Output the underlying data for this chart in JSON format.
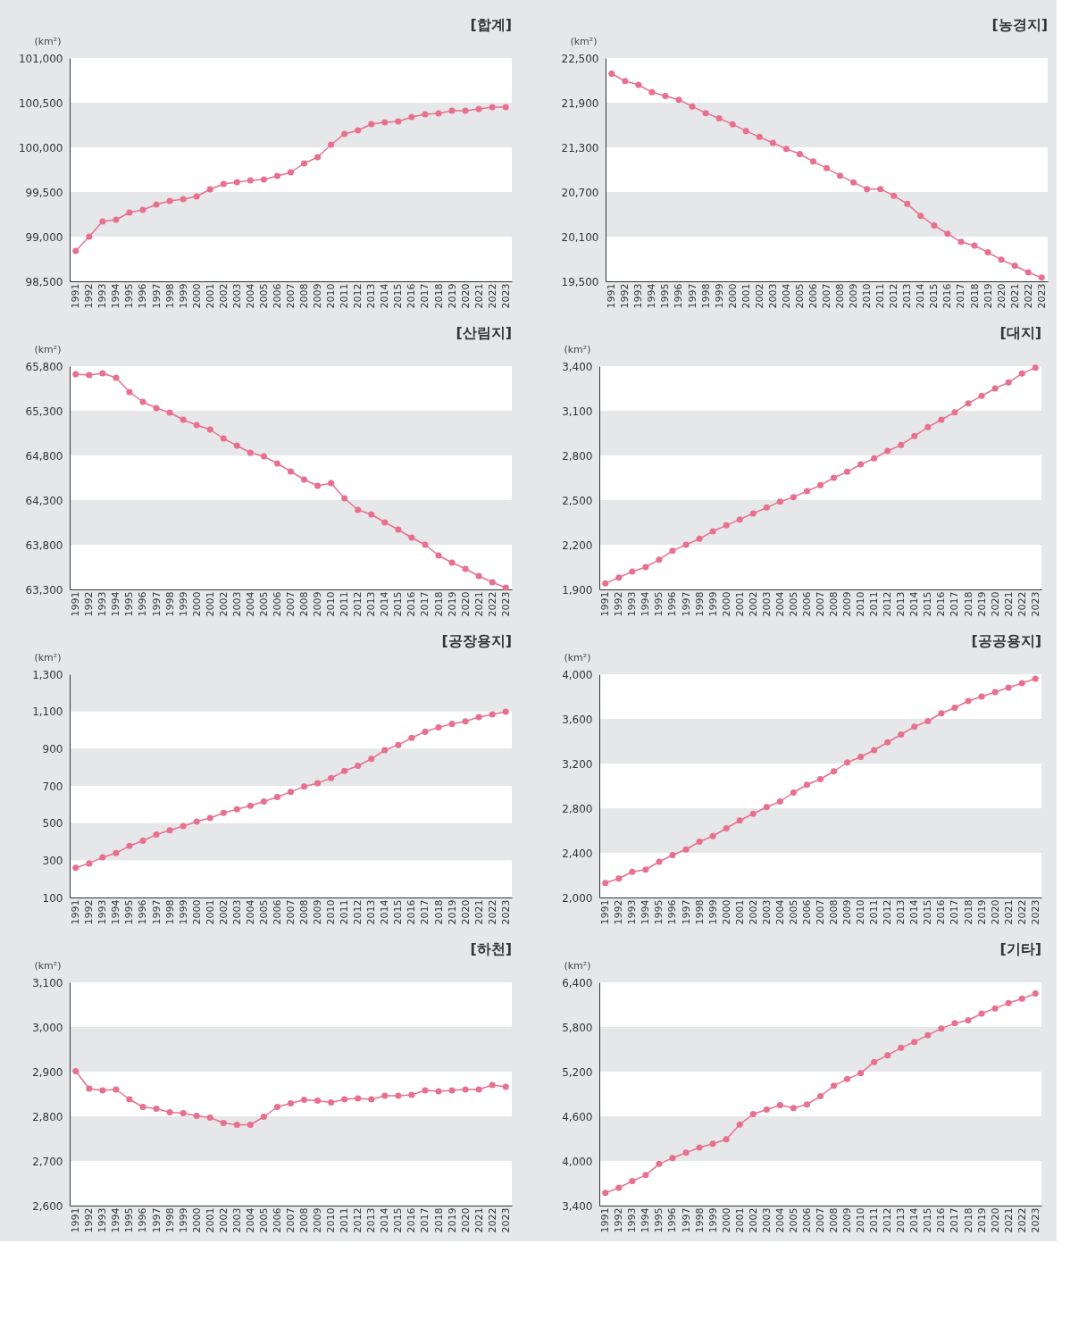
{
  "chart_data": [
    {
      "type": "line",
      "title": "[합계]",
      "ylabel": "(km²)",
      "color": "#e8708f",
      "marker": "circle",
      "bands": [
        {
          "axis": "y",
          "from": 99000,
          "to": 99500,
          "color": "#e6e7e8"
        },
        {
          "axis": "y",
          "from": 100000,
          "to": 100500,
          "color": "#e6e7e8"
        }
      ],
      "ylim": [
        98500,
        101000
      ],
      "yticks": [
        {
          "value": 98500,
          "label": "98,500"
        },
        {
          "value": 99000,
          "label": "99,000"
        },
        {
          "value": 99500,
          "label": "99,500"
        },
        {
          "value": 100000,
          "label": "100,000"
        },
        {
          "value": 100500,
          "label": "100,500"
        },
        {
          "value": 101000,
          "label": "101,000"
        }
      ],
      "categories": [
        "1991",
        "1992",
        "1993",
        "1994",
        "1995",
        "1996",
        "1997",
        "1998",
        "1999",
        "2000",
        "2001",
        "2002",
        "2003",
        "2004",
        "2005",
        "2006",
        "2007",
        "2008",
        "2009",
        "2010",
        "2011",
        "2012",
        "2013",
        "2014",
        "2015",
        "2016",
        "2017",
        "2018",
        "2019",
        "2020",
        "2021",
        "2022",
        "2023"
      ],
      "values": [
        98840,
        99000,
        99170,
        99190,
        99270,
        99300,
        99360,
        99400,
        99420,
        99450,
        99530,
        99590,
        99610,
        99630,
        99640,
        99680,
        99720,
        99820,
        99890,
        100030,
        100150,
        100190,
        100260,
        100280,
        100290,
        100340,
        100370,
        100380,
        100410,
        100410,
        100430,
        100450,
        100450
      ]
    },
    {
      "type": "line",
      "title": "[농경지]",
      "ylabel": "(km²)",
      "color": "#e8708f",
      "marker": "circle",
      "bands": [
        {
          "axis": "y",
          "from": 20100,
          "to": 20700,
          "color": "#e6e7e8"
        },
        {
          "axis": "y",
          "from": 21300,
          "to": 21900,
          "color": "#e6e7e8"
        }
      ],
      "ylim": [
        19500,
        22500
      ],
      "yticks": [
        {
          "value": 19500,
          "label": "19,500"
        },
        {
          "value": 20100,
          "label": "20,100"
        },
        {
          "value": 20700,
          "label": "20,700"
        },
        {
          "value": 21300,
          "label": "21,300"
        },
        {
          "value": 21900,
          "label": "21,900"
        },
        {
          "value": 22500,
          "label": "22,500"
        }
      ],
      "categories": [
        "1991",
        "1992",
        "1993",
        "1994",
        "1995",
        "1996",
        "1997",
        "1998",
        "1999",
        "2000",
        "2001",
        "2002",
        "2003",
        "2004",
        "2005",
        "2006",
        "2007",
        "2008",
        "2009",
        "2010",
        "2011",
        "2012",
        "2013",
        "2014",
        "2015",
        "2016",
        "2017",
        "2018",
        "2019",
        "2020",
        "2021",
        "2022",
        "2023"
      ],
      "values": [
        22290,
        22190,
        22140,
        22040,
        21990,
        21940,
        21850,
        21760,
        21690,
        21610,
        21520,
        21440,
        21360,
        21280,
        21210,
        21110,
        21020,
        20920,
        20830,
        20740,
        20740,
        20650,
        20540,
        20380,
        20250,
        20140,
        20030,
        19980,
        19890,
        19790,
        19710,
        19620,
        19550
      ]
    },
    {
      "type": "line",
      "title": "[산림지]",
      "ylabel": "(km²)",
      "color": "#e8708f",
      "marker": "circle",
      "bands": [
        {
          "axis": "y",
          "from": 63800,
          "to": 64300,
          "color": "#e6e7e8"
        },
        {
          "axis": "y",
          "from": 64800,
          "to": 65300,
          "color": "#e6e7e8"
        }
      ],
      "ylim": [
        63300,
        65800
      ],
      "yticks": [
        {
          "value": 63300,
          "label": "63,300"
        },
        {
          "value": 63800,
          "label": "63,800"
        },
        {
          "value": 64300,
          "label": "64,300"
        },
        {
          "value": 64800,
          "label": "64,800"
        },
        {
          "value": 65300,
          "label": "65,300"
        },
        {
          "value": 65800,
          "label": "65,800"
        }
      ],
      "categories": [
        "1991",
        "1992",
        "1993",
        "1994",
        "1995",
        "1996",
        "1997",
        "1998",
        "1999",
        "2000",
        "2001",
        "2002",
        "2003",
        "2004",
        "2005",
        "2006",
        "2007",
        "2008",
        "2009",
        "2010",
        "2011",
        "2012",
        "2013",
        "2014",
        "2015",
        "2016",
        "2017",
        "2018",
        "2019",
        "2020",
        "2021",
        "2022",
        "2023"
      ],
      "values": [
        65710,
        65700,
        65720,
        65670,
        65510,
        65400,
        65330,
        65280,
        65200,
        65140,
        65090,
        64990,
        64910,
        64830,
        64790,
        64710,
        64620,
        64530,
        64460,
        64490,
        64320,
        64190,
        64140,
        64050,
        63970,
        63880,
        63800,
        63680,
        63600,
        63530,
        63450,
        63380,
        63320
      ]
    },
    {
      "type": "line",
      "title": "[대지]",
      "ylabel": "(km²)",
      "color": "#e8708f",
      "marker": "circle",
      "bands": [
        {
          "axis": "y",
          "from": 2200,
          "to": 2500,
          "color": "#e6e7e8"
        },
        {
          "axis": "y",
          "from": 2800,
          "to": 3100,
          "color": "#e6e7e8"
        }
      ],
      "ylim": [
        1900,
        3400
      ],
      "yticks": [
        {
          "value": 1900,
          "label": "1,900"
        },
        {
          "value": 2200,
          "label": "2,200"
        },
        {
          "value": 2500,
          "label": "2,500"
        },
        {
          "value": 2800,
          "label": "2,800"
        },
        {
          "value": 3100,
          "label": "3,100"
        },
        {
          "value": 3400,
          "label": "3,400"
        }
      ],
      "categories": [
        "1991",
        "1992",
        "1993",
        "1994",
        "1995",
        "1996",
        "1997",
        "1998",
        "1999",
        "2000",
        "2001",
        "2002",
        "2003",
        "2004",
        "2005",
        "2006",
        "2007",
        "2008",
        "2009",
        "2010",
        "2011",
        "2012",
        "2013",
        "2014",
        "2015",
        "2016",
        "2017",
        "2018",
        "2019",
        "2020",
        "2021",
        "2022",
        "2023"
      ],
      "values": [
        1940,
        1980,
        2020,
        2050,
        2100,
        2160,
        2200,
        2240,
        2290,
        2330,
        2370,
        2410,
        2450,
        2490,
        2520,
        2560,
        2600,
        2650,
        2690,
        2740,
        2780,
        2830,
        2870,
        2930,
        2990,
        3040,
        3090,
        3150,
        3200,
        3250,
        3290,
        3350,
        3390
      ]
    },
    {
      "type": "line",
      "title": "[공장용지]",
      "ylabel": "(km²)",
      "color": "#e8708f",
      "marker": "circle",
      "bands": [
        {
          "axis": "y",
          "from": 300,
          "to": 500,
          "color": "#e6e7e8"
        },
        {
          "axis": "y",
          "from": 700,
          "to": 900,
          "color": "#e6e7e8"
        },
        {
          "axis": "y",
          "from": 1100,
          "to": 1300,
          "color": "#e6e7e8"
        }
      ],
      "ylim": [
        100,
        1300
      ],
      "yticks": [
        100,
        300,
        500,
        700,
        900,
        {
          "value": 1100,
          "label": "1,100"
        },
        {
          "value": 1300,
          "label": "1,300"
        }
      ],
      "categories": [
        "1991",
        "1992",
        "1993",
        "1994",
        "1995",
        "1996",
        "1997",
        "1998",
        "1999",
        "2000",
        "2001",
        "2002",
        "2003",
        "2004",
        "2005",
        "2006",
        "2007",
        "2008",
        "2009",
        "2010",
        "2011",
        "2012",
        "2013",
        "2014",
        "2015",
        "2016",
        "2017",
        "2018",
        "2019",
        "2020",
        "2021",
        "2022",
        "2023"
      ],
      "values": [
        260,
        283,
        316,
        339,
        377,
        405,
        438,
        461,
        484,
        508,
        527,
        555,
        574,
        593,
        616,
        640,
        668,
        696,
        714,
        742,
        780,
        808,
        845,
        892,
        920,
        958,
        991,
        1014,
        1033,
        1047,
        1070,
        1084,
        1098
      ]
    },
    {
      "type": "line",
      "title": "[공공용지]",
      "ylabel": "(km²)",
      "color": "#e8708f",
      "marker": "circle",
      "bands": [
        {
          "axis": "y",
          "from": 2400,
          "to": 2800,
          "color": "#e6e7e8"
        },
        {
          "axis": "y",
          "from": 3200,
          "to": 3600,
          "color": "#e6e7e8"
        }
      ],
      "ylim": [
        2000,
        4000
      ],
      "yticks": [
        {
          "value": 2000,
          "label": "2,000"
        },
        {
          "value": 2400,
          "label": "2,400"
        },
        {
          "value": 2800,
          "label": "2,800"
        },
        {
          "value": 3200,
          "label": "3,200"
        },
        {
          "value": 3600,
          "label": "3,600"
        },
        {
          "value": 4000,
          "label": "4,000"
        }
      ],
      "categories": [
        "1991",
        "1992",
        "1993",
        "1994",
        "1995",
        "1996",
        "1997",
        "1998",
        "1999",
        "2000",
        "2001",
        "2002",
        "2003",
        "2004",
        "2005",
        "2006",
        "2007",
        "2008",
        "2009",
        "2010",
        "2011",
        "2012",
        "2013",
        "2014",
        "2015",
        "2016",
        "2017",
        "2018",
        "2019",
        "2020",
        "2021",
        "2022",
        "2023"
      ],
      "values": [
        2130,
        2170,
        2230,
        2250,
        2320,
        2380,
        2430,
        2500,
        2550,
        2620,
        2690,
        2750,
        2810,
        2860,
        2940,
        3010,
        3060,
        3130,
        3210,
        3260,
        3320,
        3390,
        3460,
        3530,
        3580,
        3650,
        3700,
        3760,
        3800,
        3840,
        3880,
        3920,
        3960
      ]
    },
    {
      "type": "line",
      "title": "[하천]",
      "ylabel": "(km²)",
      "color": "#e8708f",
      "marker": "circle",
      "bands": [
        {
          "axis": "y",
          "from": 2700,
          "to": 2800,
          "color": "#e6e7e8"
        },
        {
          "axis": "y",
          "from": 2900,
          "to": 3000,
          "color": "#e6e7e8"
        }
      ],
      "ylim": [
        2600,
        3100
      ],
      "yticks": [
        {
          "value": 2600,
          "label": "2,600"
        },
        {
          "value": 2700,
          "label": "2,700"
        },
        {
          "value": 2800,
          "label": "2,800"
        },
        {
          "value": 2900,
          "label": "2,900"
        },
        {
          "value": 3000,
          "label": "3,000"
        },
        {
          "value": 3100,
          "label": "3,100"
        }
      ],
      "categories": [
        "1991",
        "1992",
        "1993",
        "1994",
        "1995",
        "1996",
        "1997",
        "1998",
        "1999",
        "2000",
        "2001",
        "2002",
        "2003",
        "2004",
        "2005",
        "2006",
        "2007",
        "2008",
        "2009",
        "2010",
        "2011",
        "2012",
        "2013",
        "2014",
        "2015",
        "2016",
        "2017",
        "2018",
        "2019",
        "2020",
        "2021",
        "2022",
        "2023"
      ],
      "values": [
        2901,
        2862,
        2858,
        2860,
        2838,
        2821,
        2817,
        2809,
        2807,
        2801,
        2797,
        2785,
        2781,
        2781,
        2799,
        2821,
        2829,
        2837,
        2835,
        2831,
        2838,
        2840,
        2838,
        2846,
        2846,
        2848,
        2858,
        2856,
        2858,
        2860,
        2860,
        2870,
        2866
      ]
    },
    {
      "type": "line",
      "title": "[기타]",
      "ylabel": "(km²)",
      "color": "#e8708f",
      "marker": "circle",
      "bands": [
        {
          "axis": "y",
          "from": 4000,
          "to": 4600,
          "color": "#e6e7e8"
        },
        {
          "axis": "y",
          "from": 5200,
          "to": 5800,
          "color": "#e6e7e8"
        }
      ],
      "ylim": [
        3400,
        6400
      ],
      "yticks": [
        {
          "value": 3400,
          "label": "3,400"
        },
        {
          "value": 4000,
          "label": "4,000"
        },
        {
          "value": 4600,
          "label": "4,600"
        },
        {
          "value": 5200,
          "label": "5,200"
        },
        {
          "value": 5800,
          "label": "5,800"
        },
        {
          "value": 6400,
          "label": "6,400"
        }
      ],
      "categories": [
        "1991",
        "1992",
        "1993",
        "1994",
        "1995",
        "1996",
        "1997",
        "1998",
        "1999",
        "2000",
        "2001",
        "2002",
        "2003",
        "2004",
        "2005",
        "2006",
        "2007",
        "2008",
        "2009",
        "2010",
        "2011",
        "2012",
        "2013",
        "2014",
        "2015",
        "2016",
        "2017",
        "2018",
        "2019",
        "2020",
        "2021",
        "2022",
        "2023"
      ],
      "values": [
        3570,
        3640,
        3730,
        3810,
        3960,
        4040,
        4110,
        4180,
        4230,
        4290,
        4490,
        4630,
        4690,
        4750,
        4710,
        4760,
        4870,
        5010,
        5100,
        5180,
        5330,
        5420,
        5520,
        5600,
        5690,
        5780,
        5850,
        5890,
        5980,
        6050,
        6120,
        6180,
        6250
      ]
    }
  ]
}
